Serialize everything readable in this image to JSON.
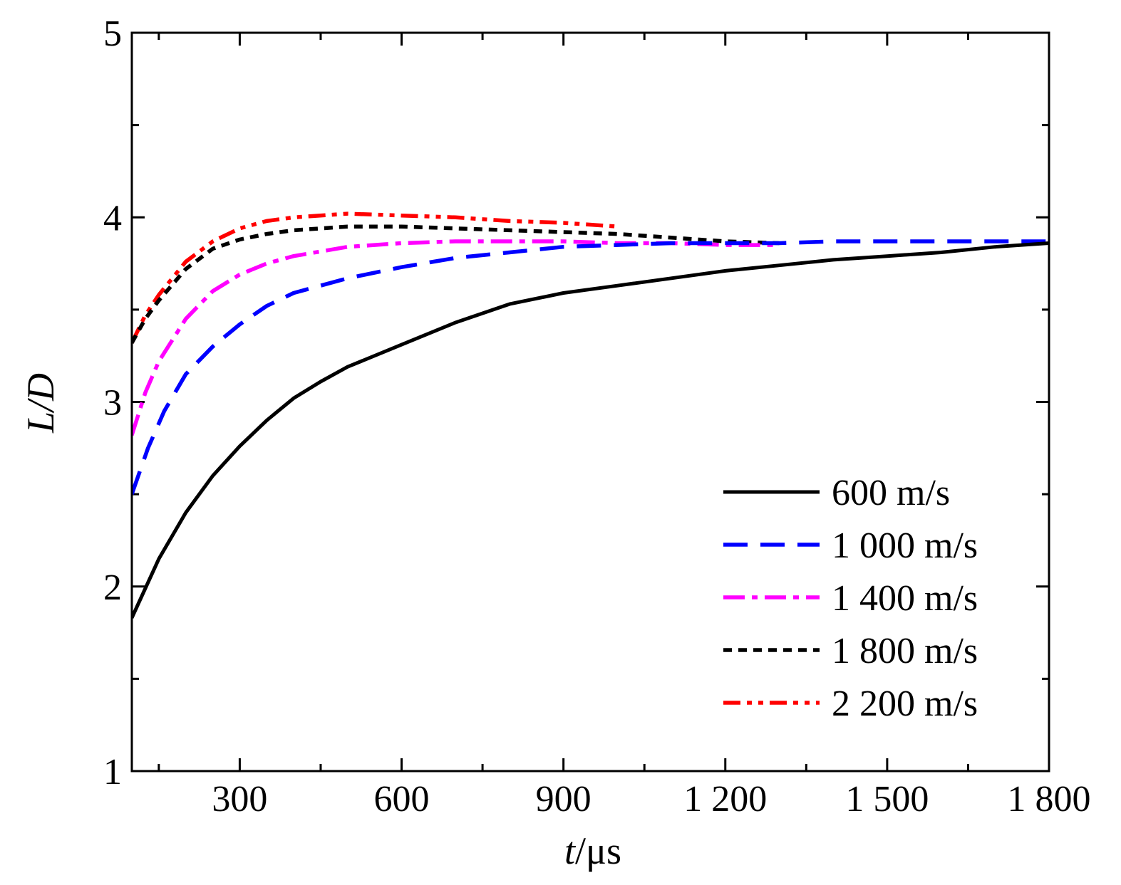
{
  "chart_data": {
    "type": "line",
    "xlabel": {
      "italic": "t",
      "rest": "/μs"
    },
    "ylabel": "L/D",
    "xlim": [
      100,
      1800
    ],
    "ylim": [
      1,
      5
    ],
    "xticks": [
      300,
      600,
      900,
      1200,
      1500,
      1800
    ],
    "xtick_labels": [
      "300",
      "600",
      "900",
      "1 200",
      "1 500",
      "1 800"
    ],
    "xminor": [
      150,
      450,
      750,
      1050,
      1350,
      1650
    ],
    "yticks": [
      1,
      2,
      3,
      4,
      5
    ],
    "ytick_labels": [
      "1",
      "2",
      "3",
      "4",
      "5"
    ],
    "yminor": [
      1.5,
      2.5,
      3.5,
      4.5
    ],
    "grid": false,
    "legend_position": "bottom-right",
    "series": [
      {
        "name": "600 m/s",
        "color": "#000000",
        "style": "solid",
        "x": [
          100,
          150,
          200,
          250,
          300,
          350,
          400,
          450,
          500,
          600,
          700,
          800,
          900,
          1000,
          1100,
          1200,
          1300,
          1400,
          1500,
          1600,
          1700,
          1800
        ],
        "y": [
          1.83,
          2.15,
          2.4,
          2.6,
          2.76,
          2.9,
          3.02,
          3.11,
          3.19,
          3.31,
          3.43,
          3.53,
          3.59,
          3.63,
          3.67,
          3.71,
          3.74,
          3.77,
          3.79,
          3.81,
          3.84,
          3.86
        ]
      },
      {
        "name": "1 000 m/s",
        "color": "#0000ff",
        "style": "dash",
        "x": [
          100,
          130,
          160,
          200,
          250,
          300,
          350,
          400,
          500,
          600,
          700,
          800,
          900,
          1000,
          1100,
          1200,
          1300,
          1400,
          1500,
          1600,
          1700,
          1800
        ],
        "y": [
          2.5,
          2.75,
          2.95,
          3.15,
          3.3,
          3.42,
          3.52,
          3.59,
          3.67,
          3.73,
          3.78,
          3.81,
          3.84,
          3.85,
          3.86,
          3.86,
          3.86,
          3.87,
          3.87,
          3.87,
          3.87,
          3.87
        ]
      },
      {
        "name": "1 400 m/s",
        "color": "#ff00ff",
        "style": "dashdot",
        "x": [
          100,
          125,
          150,
          200,
          250,
          300,
          350,
          400,
          500,
          600,
          700,
          800,
          900,
          1000,
          1100,
          1200,
          1300
        ],
        "y": [
          2.82,
          3.05,
          3.22,
          3.45,
          3.6,
          3.69,
          3.75,
          3.79,
          3.84,
          3.86,
          3.87,
          3.87,
          3.87,
          3.86,
          3.86,
          3.85,
          3.85
        ]
      },
      {
        "name": "1 800 m/s",
        "color": "#000000",
        "style": "dot",
        "x": [
          100,
          125,
          150,
          200,
          250,
          300,
          350,
          400,
          500,
          600,
          700,
          800,
          900,
          1000,
          1100,
          1200,
          1300
        ],
        "y": [
          3.32,
          3.45,
          3.55,
          3.72,
          3.83,
          3.88,
          3.91,
          3.93,
          3.95,
          3.95,
          3.94,
          3.93,
          3.92,
          3.91,
          3.89,
          3.87,
          3.86
        ]
      },
      {
        "name": "2 200 m/s",
        "color": "#ff0000",
        "style": "dashdotdot",
        "x": [
          100,
          125,
          150,
          200,
          250,
          300,
          350,
          400,
          500,
          600,
          700,
          800,
          900,
          1000
        ],
        "y": [
          3.32,
          3.47,
          3.58,
          3.76,
          3.87,
          3.94,
          3.98,
          4.0,
          4.02,
          4.01,
          4.0,
          3.98,
          3.97,
          3.95
        ]
      }
    ]
  }
}
